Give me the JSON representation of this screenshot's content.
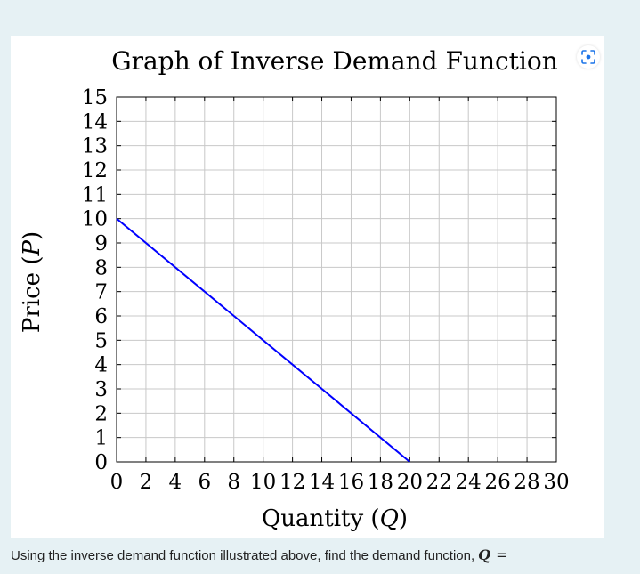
{
  "chart_data": {
    "type": "line",
    "title": "Graph of Inverse Demand Function",
    "xlabel": "Quantity (Q)",
    "ylabel": "Price (P)",
    "xlim": [
      0,
      30
    ],
    "ylim": [
      0,
      15
    ],
    "x_ticks": [
      "0",
      "2",
      "4",
      "6",
      "8",
      "10",
      "12",
      "14",
      "16",
      "18",
      "20",
      "22",
      "24",
      "26",
      "28",
      "30"
    ],
    "y_ticks": [
      "0",
      "1",
      "2",
      "3",
      "4",
      "5",
      "6",
      "7",
      "8",
      "9",
      "10",
      "11",
      "12",
      "13",
      "14",
      "15"
    ],
    "grid": true,
    "series": [
      {
        "x": [
          0,
          20
        ],
        "y": [
          10,
          0
        ],
        "color": "#0000ff"
      }
    ]
  },
  "question": {
    "text": "Using the inverse demand function illustrated above, find the demand function,",
    "variable": "Q",
    "equals": "="
  },
  "icons": {
    "scan": "scan-focus-icon"
  }
}
